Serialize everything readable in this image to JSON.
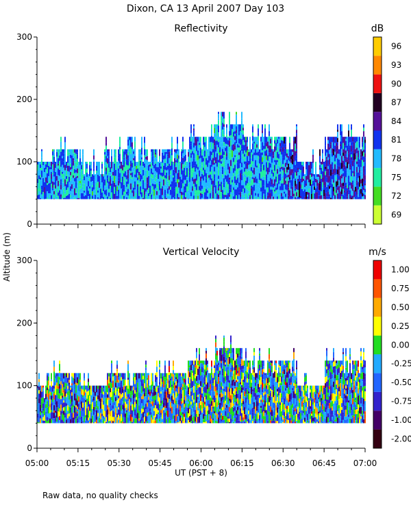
{
  "page_title": "Dixon, CA 13 April 2007  Day 103",
  "shared_ylabel": "Altitude (m)",
  "footer_note": "Raw data, no quality checks",
  "colors": {
    "reflectivity_scale": [
      "#ccff33",
      "#44dd22",
      "#22eea0",
      "#22bbff",
      "#1133ee",
      "#551199",
      "#220022",
      "#ee1111",
      "#ff8800",
      "#ffcc00"
    ],
    "velocity_scale": [
      "#330011",
      "#440066",
      "#3322cc",
      "#2266ff",
      "#22aaff",
      "#22dd22",
      "#ffff00",
      "#ffaa00",
      "#ff5500",
      "#ee0000"
    ]
  },
  "chart_data": [
    {
      "type": "heatmap",
      "title": "Reflectivity",
      "xlabel": "",
      "ylabel": "Altitude (m)",
      "ylim": [
        0,
        300
      ],
      "yticks": [
        "0",
        "100",
        "200",
        "300"
      ],
      "xticks": [
        "05:00",
        "05:15",
        "05:30",
        "05:45",
        "06:00",
        "06:15",
        "06:30",
        "06:45",
        "07:00"
      ],
      "colorbar_unit": "dB",
      "colorbar_labels": [
        "69",
        "72",
        "75",
        "78",
        "81",
        "84",
        "87",
        "90",
        "93",
        "96"
      ],
      "data_floor_m": 40,
      "echo_top_m": [
        {
          "x": "05:00",
          "top": 100
        },
        {
          "x": "05:05",
          "top": 120
        },
        {
          "x": "05:15",
          "top": 100
        },
        {
          "x": "05:25",
          "top": 120
        },
        {
          "x": "05:35",
          "top": 120
        },
        {
          "x": "05:45",
          "top": 120
        },
        {
          "x": "05:55",
          "top": 140
        },
        {
          "x": "06:05",
          "top": 160
        },
        {
          "x": "06:15",
          "top": 140
        },
        {
          "x": "06:25",
          "top": 140
        },
        {
          "x": "06:35",
          "top": 100
        },
        {
          "x": "06:45",
          "top": 140
        },
        {
          "x": "07:00",
          "top": 140
        }
      ]
    },
    {
      "type": "heatmap",
      "title": "Vertical Velocity",
      "xlabel": "UT  (PST + 8)",
      "ylabel": "Altitude (m)",
      "ylim": [
        0,
        300
      ],
      "yticks": [
        "0",
        "100",
        "200",
        "300"
      ],
      "xticks": [
        "05:00",
        "05:15",
        "05:30",
        "05:45",
        "06:00",
        "06:15",
        "06:30",
        "06:45",
        "07:00"
      ],
      "colorbar_unit": "m/s",
      "colorbar_labels": [
        "-2.00",
        "-1.00",
        "-0.75",
        "-0.50",
        "-0.25",
        "0.00",
        "0.25",
        "0.50",
        "0.75",
        "1.00"
      ],
      "data_floor_m": 40,
      "echo_top_m": [
        {
          "x": "05:00",
          "top": 100
        },
        {
          "x": "05:05",
          "top": 120
        },
        {
          "x": "05:15",
          "top": 100
        },
        {
          "x": "05:25",
          "top": 120
        },
        {
          "x": "05:35",
          "top": 120
        },
        {
          "x": "05:45",
          "top": 120
        },
        {
          "x": "05:55",
          "top": 140
        },
        {
          "x": "06:05",
          "top": 160
        },
        {
          "x": "06:15",
          "top": 140
        },
        {
          "x": "06:25",
          "top": 140
        },
        {
          "x": "06:35",
          "top": 100
        },
        {
          "x": "06:45",
          "top": 140
        },
        {
          "x": "07:00",
          "top": 140
        }
      ]
    }
  ]
}
